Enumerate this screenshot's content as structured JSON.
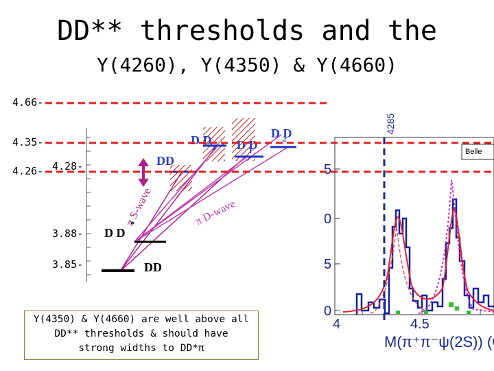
{
  "title": {
    "line1": "DD** thresholds and the",
    "line2": "Y(4260), Y(4350) & Y(4660)"
  },
  "guides": [
    {
      "label": "4.66-",
      "color": "#e02020"
    },
    {
      "label": "4.35-",
      "color": "#e02020"
    },
    {
      "label": "4.26-",
      "color": "#e02020"
    }
  ],
  "levels": {
    "l428": "4.28-",
    "l388": "3.88-",
    "l385": "3.85-"
  },
  "state_labels": {
    "dd": "DD",
    "dstar": "D D",
    "dd2": "DD",
    "dd1": "D D",
    "d1d": "D D",
    "d2d": "D D",
    "sub1": "1",
    "sub2": "2",
    "star": "*"
  },
  "transitions": {
    "swave": "π S-wave",
    "dwave": "π D-wave"
  },
  "threshold_marker": {
    "label": "4285",
    "color": "#1a2a8a"
  },
  "inset": {
    "experiment": "Belle",
    "ytick_top": "5",
    "ytick_mid": "0",
    "ytick_low": "5",
    "ytick_bottom": "0",
    "xtick_1": "4",
    "xtick_2": "4.5",
    "xlabel": "M(π⁺π⁻ψ(2S)) (G"
  },
  "note": {
    "line1": "Y(4350) & Y(4660) are well above all",
    "line2": "DD** thresholds & should have",
    "line3": "strong widths to DD*π"
  },
  "colors": {
    "level_blue": "#1a33bb",
    "level_black": "#000000",
    "swave": "#b0208a",
    "dwave": "#c03ab0",
    "label_blue": "#2a40c0",
    "hist_blue": "#1020a0",
    "fit_red": "#e02030",
    "fit_magenta": "#d020c0"
  }
}
